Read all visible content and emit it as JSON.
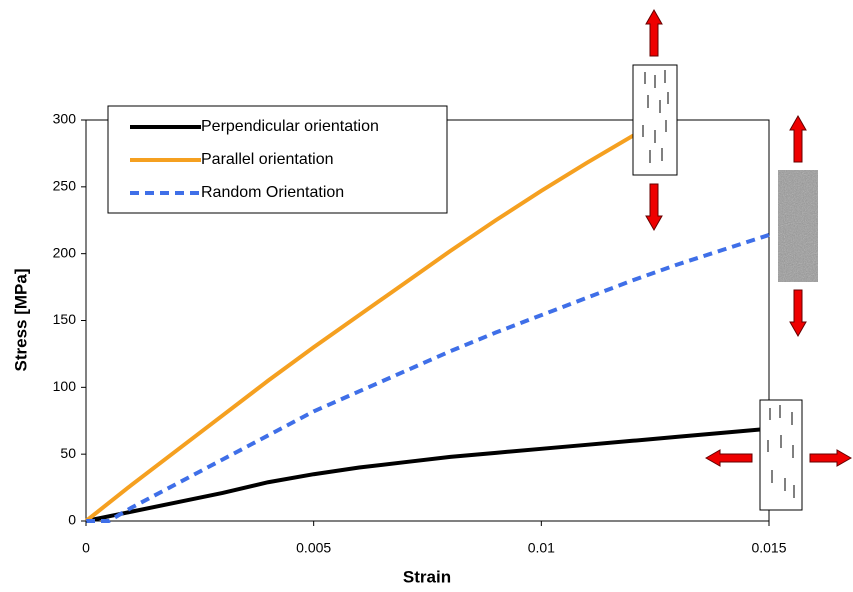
{
  "chart_data": {
    "type": "line",
    "x_label": "Strain",
    "y_label": "Stress [MPa]",
    "xlim": [
      0,
      0.015
    ],
    "xticks": [
      0,
      0.005,
      0.01,
      0.015
    ],
    "ylim": [
      0,
      300
    ],
    "yticks": [
      0,
      50,
      100,
      150,
      200,
      250,
      300
    ],
    "legend": "upper left",
    "grid": false,
    "series": [
      {
        "name": "Perpendicular orientation",
        "color": "#000000",
        "style": "solid",
        "x": [
          0,
          0.001,
          0.002,
          0.003,
          0.004,
          0.005,
          0.006,
          0.007,
          0.008,
          0.009,
          0.01,
          0.011,
          0.012,
          0.013,
          0.014,
          0.015
        ],
        "values": [
          0,
          7,
          14,
          21,
          29,
          35,
          40,
          44,
          48,
          51,
          54,
          57,
          60,
          63,
          66,
          69
        ]
      },
      {
        "name": "Parallel orientation",
        "color": "#f5a020",
        "style": "solid",
        "x": [
          0,
          0.001,
          0.002,
          0.003,
          0.004,
          0.005,
          0.006,
          0.007,
          0.008,
          0.009,
          0.01,
          0.011,
          0.012,
          0.0123
        ],
        "values": [
          0,
          27,
          53,
          79,
          105,
          130,
          154,
          178,
          202,
          225,
          247,
          268,
          288,
          292
        ]
      },
      {
        "name": "Random Orientation",
        "color": "#3f6fe8",
        "style": "dashed",
        "x": [
          0,
          0.0005,
          0.001,
          0.002,
          0.003,
          0.004,
          0.005,
          0.006,
          0.007,
          0.008,
          0.009,
          0.01,
          0.011,
          0.012,
          0.013,
          0.014,
          0.015
        ],
        "values": [
          0,
          0,
          10,
          28,
          46,
          64,
          82,
          97,
          112,
          127,
          141,
          154,
          167,
          180,
          192,
          203,
          214
        ]
      }
    ]
  }
}
